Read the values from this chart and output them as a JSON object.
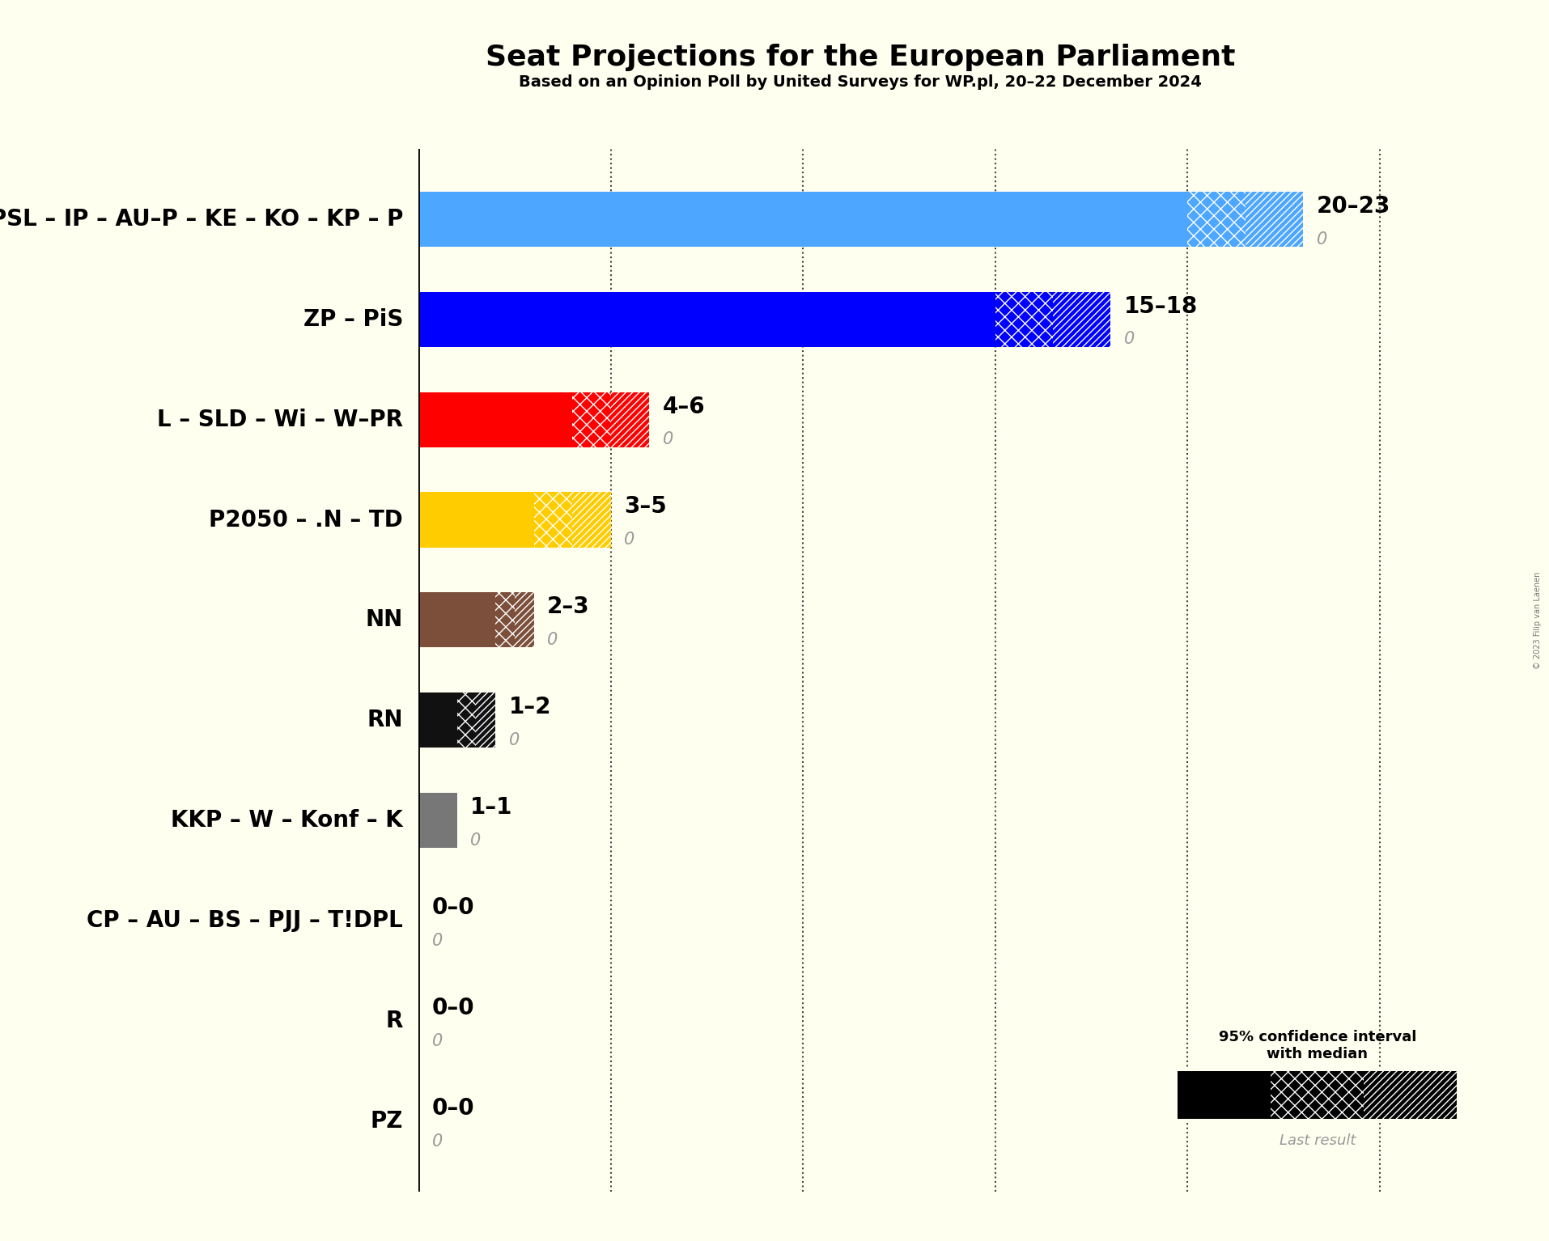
{
  "title": "Seat Projections for the European Parliament",
  "subtitle": "Based on an Opinion Poll by United Surveys for WP.pl, 20–22 December 2024",
  "copyright": "© 2023 Filip van Laenen",
  "background_color": "#fffff0",
  "parties": [
    "PO – PSL – IP – AU–P – KE – KO – KP – P",
    "ZP – PiS",
    "L – SLD – Wi – W–PR",
    "P2050 – .N – TD",
    "NN",
    "RN",
    "KKP – W – Konf – K",
    "CP – AU – BS – PJJ – T!DPL",
    "R",
    "PZ"
  ],
  "median_low": [
    20,
    15,
    4,
    3,
    2,
    1,
    1,
    0,
    0,
    0
  ],
  "median_high": [
    23,
    18,
    6,
    5,
    3,
    2,
    1,
    0,
    0,
    0
  ],
  "last_result": [
    0,
    0,
    0,
    0,
    0,
    0,
    0,
    0,
    0,
    0
  ],
  "colors": [
    "#4da6ff",
    "#0000ff",
    "#ff0000",
    "#ffcc00",
    "#7b4f3a",
    "#111111",
    "#777777",
    "#999999",
    "#999999",
    "#999999"
  ],
  "label_range": [
    "20–23",
    "15–18",
    "4–6",
    "3–5",
    "2–3",
    "1–2",
    "1–1",
    "0–0",
    "0–0",
    "0–0"
  ],
  "xlim_max": 27,
  "xtick_positions": [
    5,
    10,
    15,
    20,
    25
  ],
  "grid_color": "#444444",
  "title_fontsize": 26,
  "subtitle_fontsize": 14,
  "party_fontsize": 20,
  "range_fontsize": 20,
  "last_result_fontsize": 15
}
